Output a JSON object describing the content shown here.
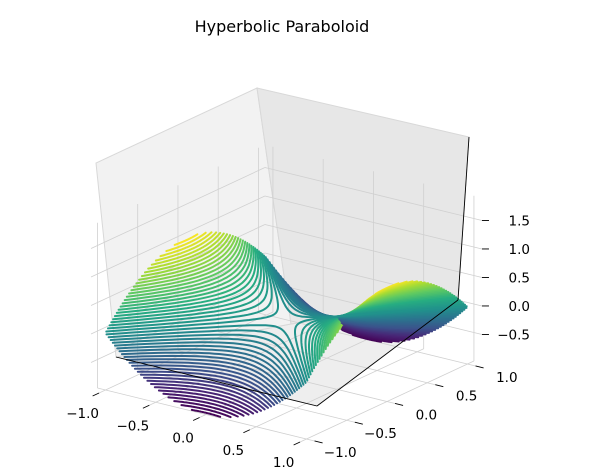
{
  "chart_data": {
    "type": "surface3d-contour",
    "title": "Hyperbolic Paraboloid",
    "function": "z = x^2 - y^2",
    "colormap": "viridis",
    "x_domain": [
      -1.0,
      1.0
    ],
    "y_domain": [
      -1.0,
      1.0
    ],
    "x_ticks": [
      "−1.0",
      "−0.5",
      "0.0",
      "0.5",
      "1.0"
    ],
    "y_ticks": [
      "−1.0",
      "−0.5",
      "0.0",
      "0.5",
      "1.0"
    ],
    "z_ticks": [
      "−0.5",
      "0.0",
      "0.5",
      "1.0",
      "1.5"
    ],
    "z_range": [
      -1.0,
      1.9
    ],
    "contour_levels": 50,
    "grid": true
  }
}
